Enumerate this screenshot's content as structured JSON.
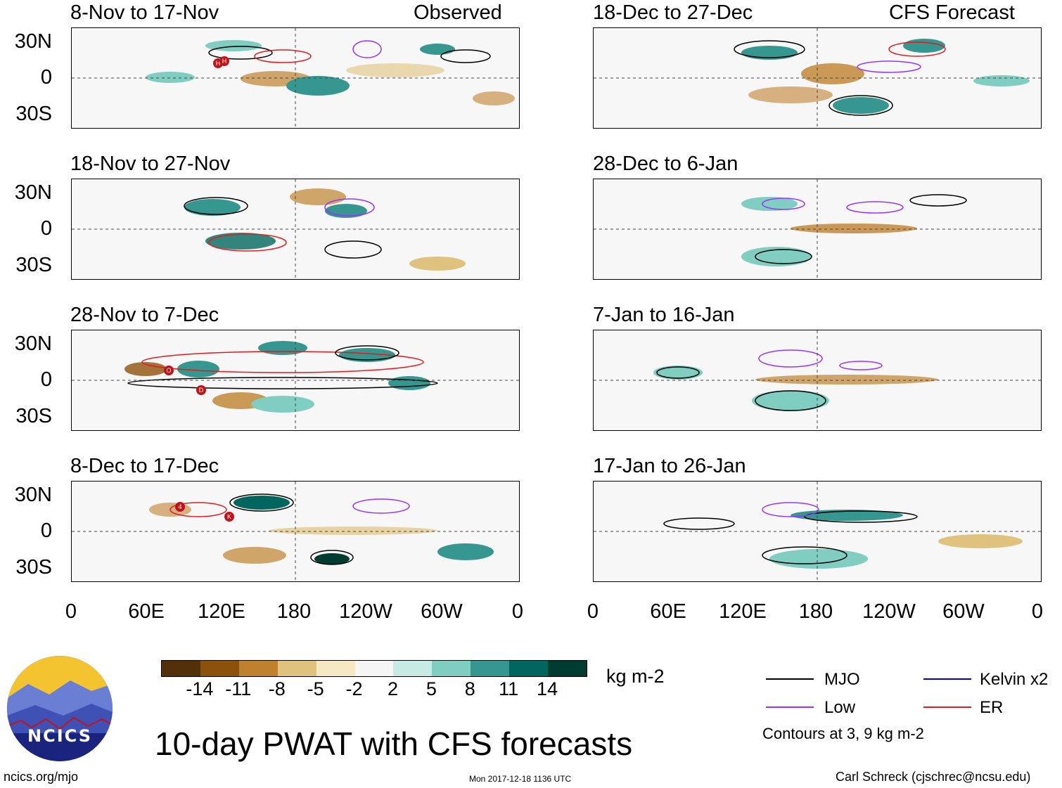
{
  "column_headers": {
    "observed": "Observed",
    "forecast": "CFS Forecast"
  },
  "panels": {
    "obs": [
      {
        "title": "8-Nov to 17-Nov"
      },
      {
        "title": "18-Nov to 27-Nov"
      },
      {
        "title": "28-Nov to 7-Dec"
      },
      {
        "title": "8-Dec to 17-Dec"
      }
    ],
    "fcst": [
      {
        "title": "18-Dec to 27-Dec"
      },
      {
        "title": "28-Dec to 6-Jan"
      },
      {
        "title": "7-Jan to 16-Jan"
      },
      {
        "title": "17-Jan to 26-Jan"
      }
    ]
  },
  "lat_labels": [
    "30N",
    "0",
    "30S"
  ],
  "lon_labels": [
    "0",
    "60E",
    "120E",
    "180",
    "120W",
    "60W",
    "0"
  ],
  "storm_markers": [
    "H",
    "H",
    "O",
    "D",
    "4",
    "K"
  ],
  "colorbar": {
    "colors": [
      "#54300a",
      "#8c510a",
      "#bf812d",
      "#dfc27d",
      "#f6e8c3",
      "#f5f5f5",
      "#c7eae5",
      "#80cdc1",
      "#35978f",
      "#01665e",
      "#003c30"
    ],
    "ticks": [
      "-14",
      "-11",
      "-8",
      "-5",
      "-2",
      "2",
      "5",
      "8",
      "11",
      "14"
    ],
    "units": "kg m-2"
  },
  "legend": {
    "mjo": {
      "label": "MJO",
      "color": "#000000"
    },
    "kelvin": {
      "label": "Kelvin x2",
      "color": "#0000cc"
    },
    "low": {
      "label": "Low",
      "color": "#9933ff"
    },
    "er": {
      "label": "ER",
      "color": "#e41a1c"
    },
    "contours_note": "Contours at 3, 9 kg m-2"
  },
  "logo": {
    "text": "NCICS"
  },
  "main_title": "10-day PWAT with CFS forecasts",
  "footer": {
    "url": "ncics.org/mjo",
    "timestamp": "Mon 2017-12-18 1136 UTC",
    "author": "Carl Schreck (cjschrec@ncsu.edu)"
  }
}
